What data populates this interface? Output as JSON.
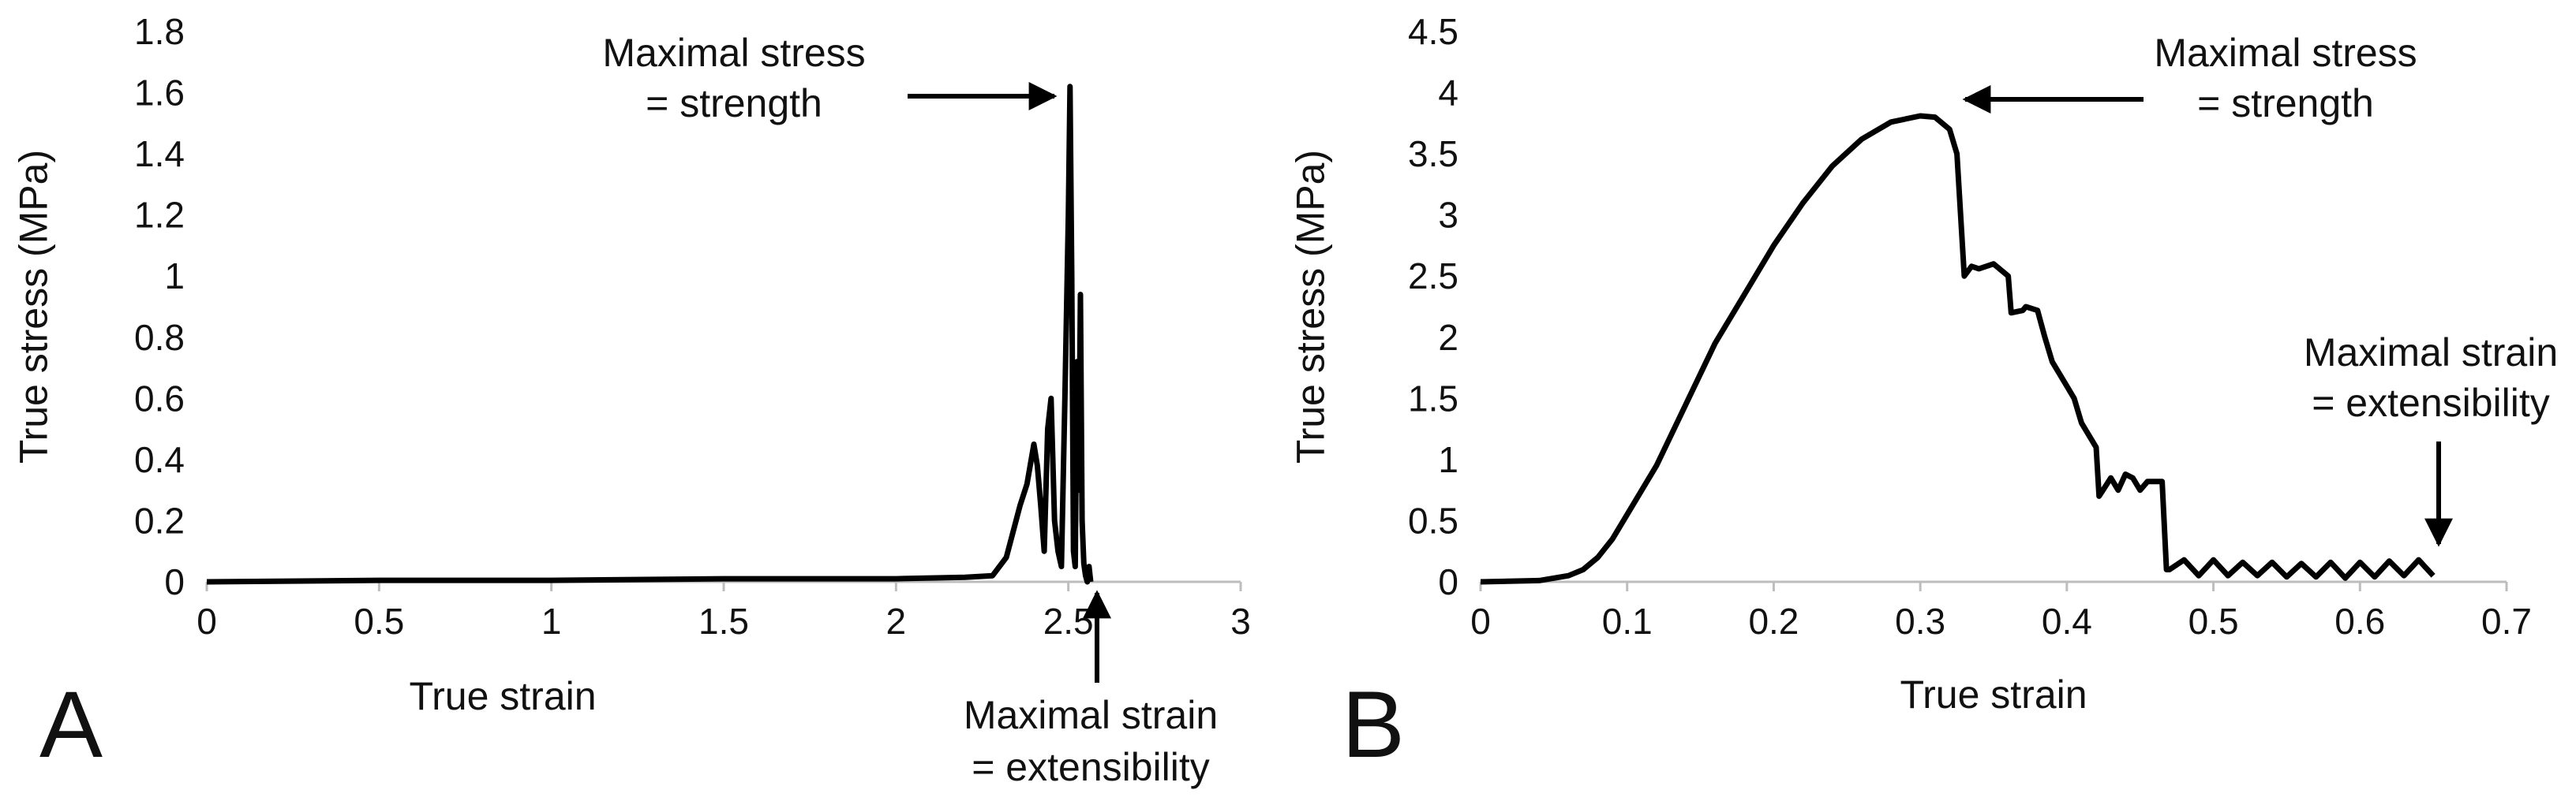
{
  "colors": {
    "line": "#000000",
    "axis": "#bdbdbd",
    "text": "#111111",
    "background": "#ffffff"
  },
  "chart_data": [
    {
      "type": "line",
      "panel_label": "A",
      "xlabel": "True strain",
      "ylabel": "True stress (MPa)",
      "xlim": [
        0,
        3
      ],
      "ylim": [
        0,
        1.8
      ],
      "x_ticks": [
        0,
        0.5,
        1,
        1.5,
        2,
        2.5,
        3
      ],
      "x_tick_labels": [
        "0",
        "0.5",
        "1",
        "1.5",
        "2",
        "2.5",
        "3"
      ],
      "y_ticks": [
        0,
        0.2,
        0.4,
        0.6,
        0.8,
        1,
        1.2,
        1.4,
        1.6,
        1.8
      ],
      "y_tick_labels": [
        "0",
        "0.2",
        "0.4",
        "0.6",
        "0.8",
        "1",
        "1.2",
        "1.4",
        "1.6",
        "1.8"
      ],
      "series": [
        {
          "name": "True stress",
          "x": [
            0,
            0.5,
            1,
            1.5,
            2,
            2.2,
            2.28,
            2.32,
            2.36,
            2.38,
            2.4,
            2.41,
            2.42,
            2.43,
            2.44,
            2.45,
            2.46,
            2.47,
            2.48,
            2.49,
            2.5,
            2.505,
            2.51,
            2.515,
            2.52,
            2.525,
            2.53,
            2.535,
            2.54,
            2.545,
            2.55,
            2.555,
            2.56,
            2.565
          ],
          "y": [
            0,
            0.005,
            0.005,
            0.01,
            0.01,
            0.015,
            0.02,
            0.08,
            0.25,
            0.32,
            0.45,
            0.38,
            0.25,
            0.1,
            0.5,
            0.6,
            0.2,
            0.1,
            0.05,
            0.6,
            1.2,
            1.62,
            1.0,
            0.1,
            0.05,
            0.72,
            0.3,
            0.94,
            0.2,
            0.06,
            0.02,
            0.0,
            0.05,
            0.0
          ]
        }
      ],
      "annotations": [
        {
          "id": "max-stress",
          "lines": [
            "Maximal stress",
            "= strength"
          ],
          "points_to": [
            2.51,
            1.6
          ]
        },
        {
          "id": "max-strain",
          "lines": [
            "Maximal strain",
            "= extensibility"
          ],
          "points_to": [
            2.555,
            0
          ]
        }
      ]
    },
    {
      "type": "line",
      "panel_label": "B",
      "xlabel": "True strain",
      "ylabel": "True stress (MPa)",
      "xlim": [
        0,
        0.7
      ],
      "ylim": [
        0,
        4.5
      ],
      "x_ticks": [
        0,
        0.1,
        0.2,
        0.3,
        0.4,
        0.5,
        0.6,
        0.7
      ],
      "x_tick_labels": [
        "0",
        "0.1",
        "0.2",
        "0.3",
        "0.4",
        "0.5",
        "0.6",
        "0.7"
      ],
      "y_ticks": [
        0,
        0.5,
        1,
        1.5,
        2,
        2.5,
        3,
        3.5,
        4,
        4.5
      ],
      "y_tick_labels": [
        "0",
        "0.5",
        "1",
        "1.5",
        "2",
        "2.5",
        "3",
        "3.5",
        "4",
        "4.5"
      ],
      "series": [
        {
          "name": "True stress",
          "x": [
            0,
            0.04,
            0.06,
            0.07,
            0.08,
            0.09,
            0.1,
            0.12,
            0.14,
            0.16,
            0.18,
            0.2,
            0.22,
            0.24,
            0.26,
            0.28,
            0.3,
            0.31,
            0.32,
            0.325,
            0.33,
            0.335,
            0.34,
            0.35,
            0.36,
            0.362,
            0.37,
            0.372,
            0.38,
            0.385,
            0.39,
            0.395,
            0.4,
            0.405,
            0.41,
            0.415,
            0.42,
            0.422,
            0.43,
            0.435,
            0.44,
            0.445,
            0.45,
            0.455,
            0.465,
            0.468,
            0.47,
            0.48,
            0.49,
            0.5,
            0.51,
            0.52,
            0.53,
            0.54,
            0.55,
            0.56,
            0.57,
            0.58,
            0.59,
            0.6,
            0.61,
            0.62,
            0.63,
            0.64,
            0.65
          ],
          "y": [
            0,
            0.01,
            0.05,
            0.1,
            0.2,
            0.35,
            0.55,
            0.95,
            1.45,
            1.95,
            2.35,
            2.75,
            3.1,
            3.4,
            3.62,
            3.76,
            3.81,
            3.8,
            3.7,
            3.5,
            2.5,
            2.58,
            2.56,
            2.6,
            2.5,
            2.2,
            2.22,
            2.25,
            2.22,
            2.0,
            1.8,
            1.7,
            1.6,
            1.5,
            1.3,
            1.2,
            1.1,
            0.7,
            0.85,
            0.75,
            0.88,
            0.85,
            0.75,
            0.82,
            0.82,
            0.1,
            0.1,
            0.18,
            0.05,
            0.18,
            0.05,
            0.16,
            0.05,
            0.16,
            0.04,
            0.15,
            0.04,
            0.16,
            0.03,
            0.16,
            0.04,
            0.17,
            0.05,
            0.18,
            0.05
          ]
        }
      ],
      "annotations": [
        {
          "id": "max-stress",
          "lines": [
            "Maximal stress",
            "= strength"
          ],
          "points_to": [
            0.31,
            3.82
          ]
        },
        {
          "id": "max-strain",
          "lines": [
            "Maximal strain",
            "= extensibility"
          ],
          "points_to": [
            0.647,
            0.2
          ]
        }
      ]
    }
  ]
}
